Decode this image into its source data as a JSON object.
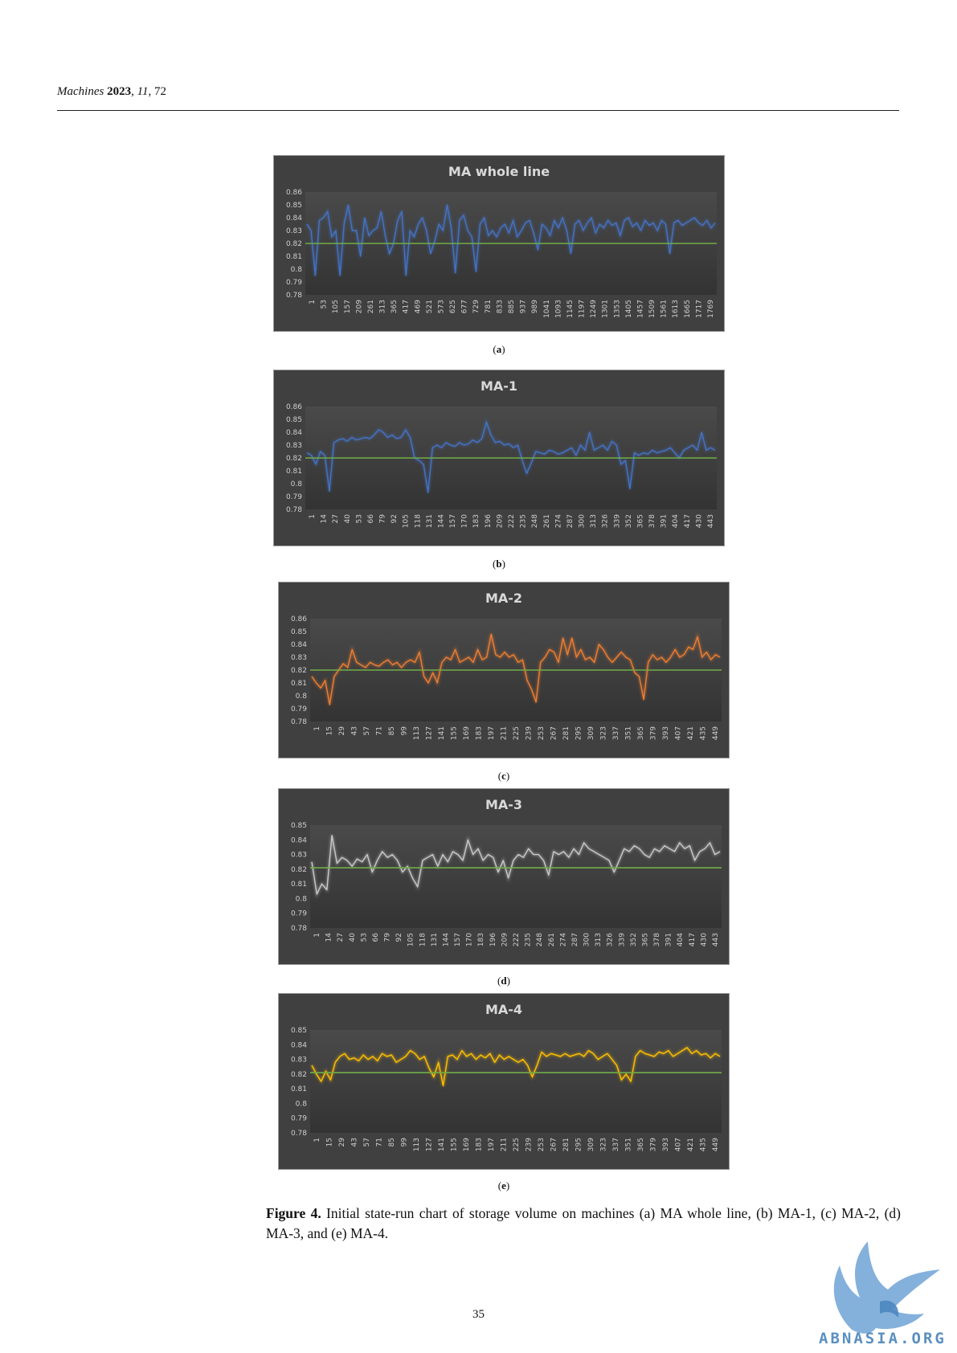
{
  "header": {
    "journal": "Machines",
    "year": "2023",
    "volume": "11",
    "article": "72"
  },
  "subfigure_labels": [
    "a",
    "b",
    "c",
    "d",
    "e"
  ],
  "caption": {
    "label": "Figure 4.",
    "text": "Initial state-run chart of storage volume on machines (a) MA whole line, (b) MA-1, (c) MA-2, (d) MA-3, and (e) MA-4."
  },
  "page_number": "35",
  "watermark": {
    "text": "ABNASIA.ORG"
  },
  "chart_data": [
    {
      "type": "line",
      "title": "MA whole line",
      "color": "#4472c4",
      "reference_line_color": "#70ad47",
      "reference_value": 0.82,
      "ylim": [
        0.78,
        0.86
      ],
      "yticks": [
        "0.86",
        "0.85",
        "0.84",
        "0.83",
        "0.82",
        "0.81",
        "0.8",
        "0.79",
        "0.78"
      ],
      "xticks": [
        "1",
        "53",
        "105",
        "157",
        "209",
        "261",
        "313",
        "365",
        "417",
        "469",
        "521",
        "573",
        "625",
        "677",
        "729",
        "781",
        "833",
        "885",
        "937",
        "989",
        "1041",
        "1093",
        "1145",
        "1197",
        "1249",
        "1301",
        "1353",
        "1405",
        "1457",
        "1509",
        "1561",
        "1613",
        "1665",
        "1717",
        "1769"
      ],
      "n_points": 1800,
      "y": [
        0.835,
        0.83,
        0.795,
        0.838,
        0.84,
        0.845,
        0.825,
        0.83,
        0.795,
        0.835,
        0.85,
        0.83,
        0.83,
        0.81,
        0.84,
        0.826,
        0.83,
        0.832,
        0.845,
        0.826,
        0.812,
        0.82,
        0.838,
        0.845,
        0.795,
        0.83,
        0.825,
        0.835,
        0.84,
        0.83,
        0.812,
        0.822,
        0.835,
        0.83,
        0.85,
        0.832,
        0.797,
        0.838,
        0.842,
        0.83,
        0.825,
        0.798,
        0.835,
        0.84,
        0.826,
        0.83,
        0.825,
        0.832,
        0.835,
        0.828,
        0.838,
        0.825,
        0.83,
        0.836,
        0.838,
        0.828,
        0.815,
        0.835,
        0.832,
        0.826,
        0.838,
        0.832,
        0.84,
        0.83,
        0.812,
        0.835,
        0.838,
        0.83,
        0.836,
        0.84,
        0.828,
        0.835,
        0.832,
        0.838,
        0.834,
        0.836,
        0.826,
        0.838,
        0.84,
        0.833,
        0.836,
        0.83,
        0.838,
        0.834,
        0.836,
        0.83,
        0.838,
        0.835,
        0.812,
        0.836,
        0.838,
        0.834,
        0.836,
        0.838,
        0.84,
        0.836,
        0.834,
        0.838,
        0.832,
        0.836
      ]
    },
    {
      "type": "line",
      "title": "MA-1",
      "color": "#4472c4",
      "reference_line_color": "#70ad47",
      "reference_value": 0.82,
      "ylim": [
        0.78,
        0.86
      ],
      "yticks": [
        "0.86",
        "0.85",
        "0.84",
        "0.83",
        "0.82",
        "0.81",
        "0.8",
        "0.79",
        "0.78"
      ],
      "xticks": [
        "1",
        "14",
        "27",
        "40",
        "53",
        "66",
        "79",
        "92",
        "105",
        "118",
        "131",
        "144",
        "157",
        "170",
        "183",
        "196",
        "209",
        "222",
        "235",
        "248",
        "261",
        "274",
        "287",
        "300",
        "313",
        "326",
        "339",
        "352",
        "365",
        "378",
        "391",
        "404",
        "417",
        "430",
        "443"
      ],
      "n_points": 450,
      "y": [
        0.824,
        0.822,
        0.815,
        0.825,
        0.822,
        0.794,
        0.832,
        0.834,
        0.835,
        0.833,
        0.836,
        0.834,
        0.835,
        0.836,
        0.835,
        0.838,
        0.842,
        0.84,
        0.836,
        0.838,
        0.835,
        0.836,
        0.842,
        0.836,
        0.82,
        0.818,
        0.815,
        0.793,
        0.828,
        0.83,
        0.828,
        0.832,
        0.83,
        0.829,
        0.832,
        0.83,
        0.831,
        0.834,
        0.832,
        0.835,
        0.848,
        0.838,
        0.832,
        0.833,
        0.83,
        0.831,
        0.828,
        0.83,
        0.818,
        0.808,
        0.816,
        0.825,
        0.824,
        0.823,
        0.826,
        0.825,
        0.823,
        0.824,
        0.826,
        0.828,
        0.822,
        0.83,
        0.826,
        0.84,
        0.826,
        0.828,
        0.83,
        0.826,
        0.833,
        0.83,
        0.815,
        0.818,
        0.796,
        0.824,
        0.822,
        0.824,
        0.823,
        0.826,
        0.824,
        0.825,
        0.826,
        0.828,
        0.824,
        0.82,
        0.826,
        0.828,
        0.83,
        0.826,
        0.84,
        0.826,
        0.828,
        0.826
      ]
    },
    {
      "type": "line",
      "title": "MA-2",
      "color": "#ed7d31",
      "reference_line_color": "#70ad47",
      "reference_value": 0.82,
      "ylim": [
        0.78,
        0.86
      ],
      "yticks": [
        "0.86",
        "0.85",
        "0.84",
        "0.83",
        "0.82",
        "0.81",
        "0.8",
        "0.79",
        "0.78"
      ],
      "xticks": [
        "1",
        "15",
        "29",
        "43",
        "57",
        "71",
        "85",
        "99",
        "113",
        "127",
        "141",
        "155",
        "169",
        "183",
        "197",
        "211",
        "225",
        "239",
        "253",
        "267",
        "281",
        "295",
        "309",
        "323",
        "337",
        "351",
        "365",
        "379",
        "393",
        "407",
        "421",
        "435",
        "449"
      ],
      "n_points": 460,
      "y": [
        0.815,
        0.81,
        0.806,
        0.812,
        0.793,
        0.815,
        0.82,
        0.825,
        0.822,
        0.836,
        0.826,
        0.824,
        0.822,
        0.826,
        0.824,
        0.823,
        0.826,
        0.828,
        0.824,
        0.826,
        0.822,
        0.826,
        0.828,
        0.826,
        0.834,
        0.815,
        0.81,
        0.818,
        0.81,
        0.826,
        0.83,
        0.828,
        0.836,
        0.826,
        0.828,
        0.83,
        0.826,
        0.836,
        0.828,
        0.83,
        0.848,
        0.832,
        0.83,
        0.834,
        0.83,
        0.832,
        0.826,
        0.828,
        0.812,
        0.805,
        0.795,
        0.826,
        0.83,
        0.836,
        0.834,
        0.826,
        0.845,
        0.832,
        0.845,
        0.83,
        0.836,
        0.828,
        0.83,
        0.826,
        0.84,
        0.836,
        0.83,
        0.826,
        0.83,
        0.834,
        0.83,
        0.828,
        0.818,
        0.815,
        0.797,
        0.826,
        0.832,
        0.828,
        0.83,
        0.826,
        0.83,
        0.836,
        0.83,
        0.832,
        0.838,
        0.836,
        0.846,
        0.83,
        0.834,
        0.828,
        0.832,
        0.83
      ]
    },
    {
      "type": "line",
      "title": "MA-3",
      "color": "#c8c8c8",
      "reference_line_color": "#70ad47",
      "reference_value": 0.821,
      "ylim": [
        0.78,
        0.85
      ],
      "yticks": [
        "0.85",
        "0.84",
        "0.83",
        "0.82",
        "0.81",
        "0.8",
        "0.79",
        "0.78"
      ],
      "xticks": [
        "1",
        "14",
        "27",
        "40",
        "53",
        "66",
        "79",
        "92",
        "105",
        "118",
        "131",
        "144",
        "157",
        "170",
        "183",
        "196",
        "209",
        "222",
        "235",
        "248",
        "261",
        "274",
        "287",
        "300",
        "313",
        "326",
        "339",
        "352",
        "365",
        "378",
        "391",
        "404",
        "417",
        "430",
        "443"
      ],
      "n_points": 450,
      "y": [
        0.825,
        0.803,
        0.81,
        0.806,
        0.843,
        0.824,
        0.828,
        0.826,
        0.822,
        0.827,
        0.825,
        0.83,
        0.818,
        0.826,
        0.832,
        0.828,
        0.83,
        0.826,
        0.818,
        0.822,
        0.814,
        0.808,
        0.826,
        0.828,
        0.83,
        0.822,
        0.83,
        0.825,
        0.832,
        0.83,
        0.826,
        0.84,
        0.83,
        0.834,
        0.826,
        0.83,
        0.828,
        0.818,
        0.826,
        0.814,
        0.826,
        0.83,
        0.828,
        0.834,
        0.83,
        0.83,
        0.826,
        0.816,
        0.832,
        0.83,
        0.832,
        0.828,
        0.834,
        0.83,
        0.838,
        0.834,
        0.832,
        0.83,
        0.828,
        0.826,
        0.818,
        0.826,
        0.834,
        0.832,
        0.836,
        0.834,
        0.83,
        0.828,
        0.834,
        0.832,
        0.836,
        0.834,
        0.832,
        0.838,
        0.834,
        0.836,
        0.826,
        0.832,
        0.834,
        0.838,
        0.83,
        0.832
      ]
    },
    {
      "type": "line",
      "title": "MA-4",
      "color": "#ffc000",
      "reference_line_color": "#70ad47",
      "reference_value": 0.821,
      "ylim": [
        0.78,
        0.85
      ],
      "yticks": [
        "0.85",
        "0.84",
        "0.83",
        "0.82",
        "0.81",
        "0.8",
        "0.79",
        "0.78"
      ],
      "xticks": [
        "1",
        "15",
        "29",
        "43",
        "57",
        "71",
        "85",
        "99",
        "113",
        "127",
        "141",
        "155",
        "169",
        "183",
        "197",
        "211",
        "225",
        "239",
        "253",
        "267",
        "281",
        "295",
        "309",
        "323",
        "337",
        "351",
        "365",
        "379",
        "393",
        "407",
        "421",
        "435",
        "449"
      ],
      "n_points": 460,
      "y": [
        0.826,
        0.82,
        0.815,
        0.822,
        0.816,
        0.828,
        0.832,
        0.834,
        0.83,
        0.831,
        0.829,
        0.833,
        0.83,
        0.832,
        0.829,
        0.834,
        0.832,
        0.833,
        0.828,
        0.83,
        0.832,
        0.836,
        0.834,
        0.83,
        0.832,
        0.824,
        0.818,
        0.828,
        0.812,
        0.832,
        0.833,
        0.83,
        0.836,
        0.832,
        0.834,
        0.83,
        0.833,
        0.831,
        0.834,
        0.828,
        0.833,
        0.83,
        0.832,
        0.83,
        0.828,
        0.83,
        0.826,
        0.818,
        0.826,
        0.835,
        0.832,
        0.834,
        0.833,
        0.832,
        0.834,
        0.832,
        0.833,
        0.834,
        0.832,
        0.836,
        0.834,
        0.83,
        0.832,
        0.834,
        0.83,
        0.826,
        0.816,
        0.82,
        0.815,
        0.832,
        0.836,
        0.834,
        0.833,
        0.832,
        0.835,
        0.834,
        0.836,
        0.832,
        0.834,
        0.836,
        0.838,
        0.834,
        0.836,
        0.833,
        0.834,
        0.831,
        0.834,
        0.832
      ]
    }
  ]
}
